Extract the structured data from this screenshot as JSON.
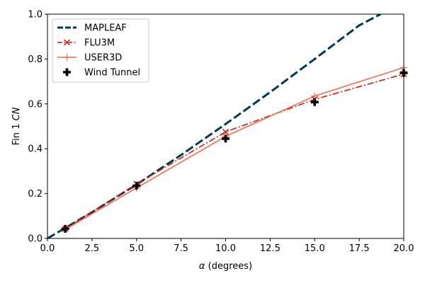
{
  "chart_data": {
    "type": "line",
    "xlabel_symbol": "α",
    "xlabel_rest": " (degrees)",
    "ylabel_prefix": "Fin 1 ",
    "ylabel_italic": "CN",
    "xlim": [
      0,
      20
    ],
    "ylim": [
      0,
      1
    ],
    "xticks": [
      "0.0",
      "2.5",
      "5.0",
      "7.5",
      "10.0",
      "12.5",
      "15.0",
      "17.5",
      "20.0"
    ],
    "yticks": [
      "0.0",
      "0.2",
      "0.4",
      "0.6",
      "0.8",
      "1.0"
    ],
    "grid": false,
    "legend_position": "top-left",
    "series": [
      {
        "name": "MAPLEAF",
        "color": "#003a52",
        "style": "dashed",
        "marker": "none",
        "x": [
          0,
          2.5,
          5,
          7.5,
          10,
          12.5,
          15,
          17.5,
          18.7
        ],
        "y": [
          0,
          0.117,
          0.24,
          0.372,
          0.51,
          0.652,
          0.8,
          0.95,
          1.0
        ]
      },
      {
        "name": "FLU3M",
        "color": "#e3120b",
        "style": "dashdot",
        "marker": "x",
        "x": [
          1,
          5,
          10,
          15,
          20
        ],
        "y": [
          0.043,
          0.243,
          0.475,
          0.62,
          0.733
        ]
      },
      {
        "name": "USER3D",
        "color": "#f36c4c",
        "style": "solid",
        "marker": "+",
        "x": [
          1,
          5,
          10,
          15,
          20
        ],
        "y": [
          0.04,
          0.225,
          0.455,
          0.635,
          0.762
        ]
      },
      {
        "name": "Wind Tunnel",
        "color": "#000000",
        "style": "none",
        "marker": "P",
        "x": [
          1,
          5,
          10,
          15,
          20
        ],
        "y": [
          0.043,
          0.235,
          0.445,
          0.608,
          0.738
        ]
      }
    ]
  }
}
